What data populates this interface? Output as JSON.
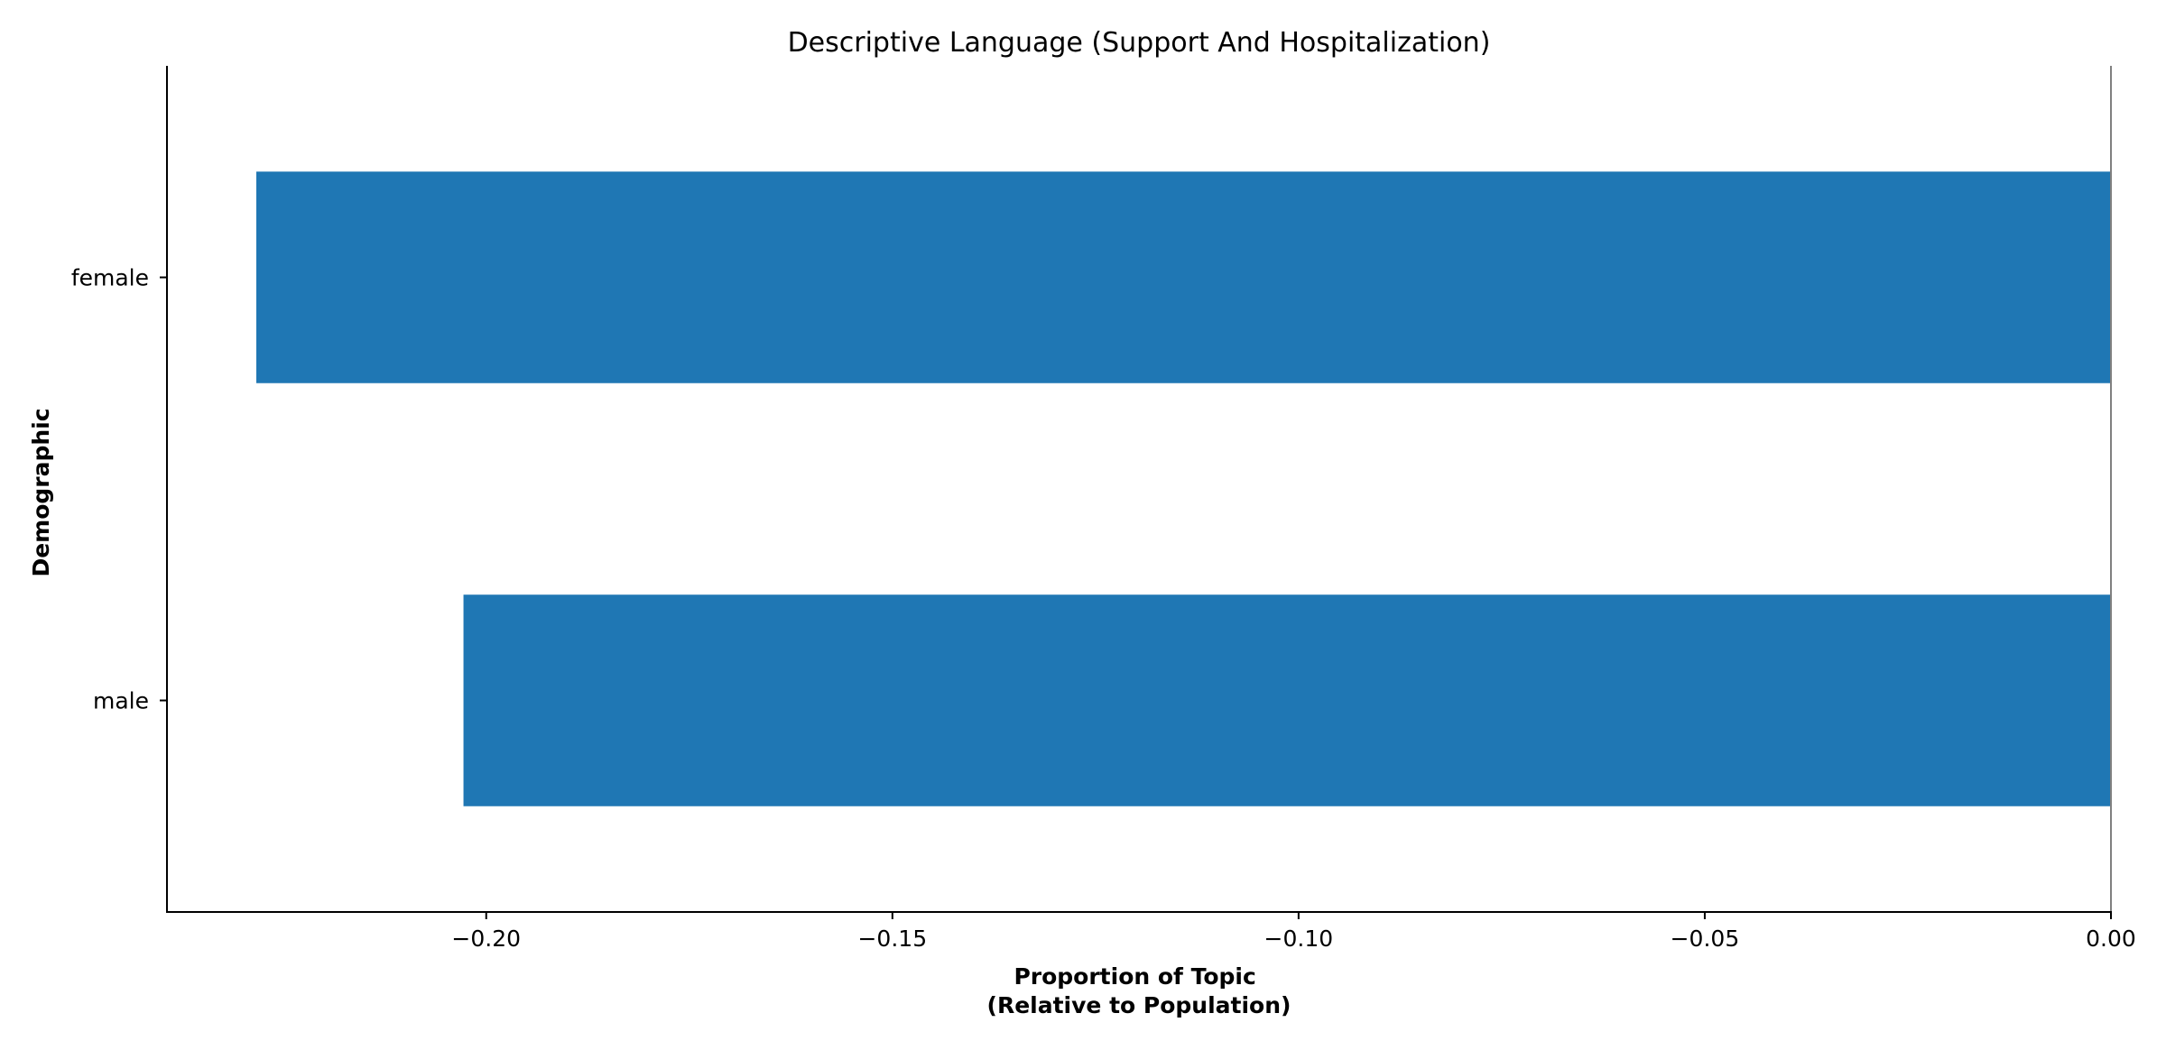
{
  "chart_data": {
    "type": "bar",
    "orientation": "horizontal",
    "title": "Descriptive Language (Support And Hospitalization)",
    "xlabel": [
      "Proportion of Topic",
      "(Relative to Population)"
    ],
    "ylabel": "Demographic",
    "categories": [
      "female",
      "male"
    ],
    "values": [
      -0.2283,
      -0.2028
    ],
    "xlim": [
      -0.2393,
      0.0
    ],
    "xticks": [
      -0.2,
      -0.15,
      -0.1,
      -0.05,
      0.0
    ],
    "xtick_labels": [
      "−0.20",
      "−0.15",
      "−0.10",
      "−0.05",
      "0.00"
    ],
    "grid": false,
    "legend": "none",
    "bar_color": "#1f77b4",
    "zero_line_color": "#808080"
  }
}
